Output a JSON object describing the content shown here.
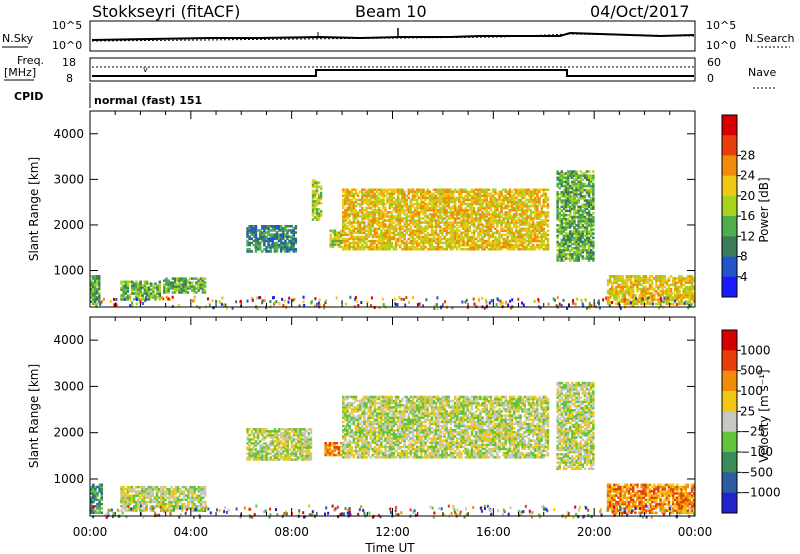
{
  "header": {
    "station": "Stokkseyri (fitACF)",
    "beam": "Beam 10",
    "date": "04/Oct/2017"
  },
  "status_panels": {
    "nsky_label": "N.Sky",
    "nsearch_label": "N.Search",
    "noise_ticks": [
      "10^5",
      "10^0"
    ],
    "freq_label_1": "Freq.",
    "freq_label_2": "[MHz]",
    "freq_ticks": [
      "18",
      "8"
    ],
    "nave_label": "Nave",
    "nave_ticks": [
      "60",
      "0"
    ],
    "cpid_label": "CPID",
    "cpid_value": "normal (fast) 151"
  },
  "chart_data": [
    {
      "type": "heatmap",
      "name": "power",
      "ylabel": "Slant Range [km]",
      "xlabel": "",
      "ylim": [
        200,
        4500
      ],
      "x_ticks": [
        "00:00",
        "04:00",
        "08:00",
        "12:00",
        "16:00",
        "20:00",
        "00:00"
      ],
      "y_ticks": [
        "1000",
        "2000",
        "3000",
        "4000"
      ],
      "colorbar": {
        "label": "Power [dB]",
        "ticks": [
          "4",
          "8",
          "12",
          "16",
          "20",
          "24",
          "28"
        ],
        "colors": [
          "#1a1aff",
          "#2255cc",
          "#3d7a5c",
          "#4cae4c",
          "#a8d21e",
          "#f0c814",
          "#f08c0a",
          "#e83c0a",
          "#d70000"
        ]
      },
      "regions": [
        {
          "t": [
            0.0,
            0.4
          ],
          "r": [
            250,
            900
          ],
          "level": 3
        },
        {
          "t": [
            1.2,
            2.8
          ],
          "r": [
            350,
            780
          ],
          "level": 3
        },
        {
          "t": [
            2.9,
            4.6
          ],
          "r": [
            500,
            850
          ],
          "level": 3
        },
        {
          "t": [
            6.2,
            8.2
          ],
          "r": [
            1400,
            2000
          ],
          "level": 2
        },
        {
          "t": [
            8.8,
            9.2
          ],
          "r": [
            2100,
            3000
          ],
          "level": 4
        },
        {
          "t": [
            9.5,
            10.0
          ],
          "r": [
            1500,
            1900
          ],
          "level": 4
        },
        {
          "t": [
            10.0,
            18.2
          ],
          "r": [
            1450,
            2800
          ],
          "level": 5
        },
        {
          "t": [
            18.5,
            20.0
          ],
          "r": [
            1200,
            3200
          ],
          "level": 3
        },
        {
          "t": [
            20.5,
            24.0
          ],
          "r": [
            250,
            900
          ],
          "level": 5
        }
      ]
    },
    {
      "type": "heatmap",
      "name": "velocity",
      "ylabel": "Slant Range [km]",
      "xlabel": "Time UT",
      "ylim": [
        200,
        4500
      ],
      "x_ticks": [
        "00:00",
        "04:00",
        "08:00",
        "12:00",
        "16:00",
        "20:00",
        "00:00"
      ],
      "y_ticks": [
        "1000",
        "2000",
        "3000",
        "4000"
      ],
      "colorbar": {
        "label": "Velocity [m s⁻¹]",
        "ticks": [
          "1000",
          "500",
          "100",
          "25",
          "−25",
          "−100",
          "−500",
          "−1000"
        ],
        "colors": [
          "#2222cc",
          "#2d5d9f",
          "#3c8c5a",
          "#62c43c",
          "#c8c8c0",
          "#f0c814",
          "#f08c0a",
          "#e83c0a",
          "#d70000"
        ]
      },
      "regions": [
        {
          "t": [
            0.0,
            0.5
          ],
          "r": [
            250,
            900
          ],
          "level": 2
        },
        {
          "t": [
            1.2,
            4.6
          ],
          "r": [
            300,
            850
          ],
          "level": 4
        },
        {
          "t": [
            6.2,
            8.8
          ],
          "r": [
            1400,
            2100
          ],
          "level": 4
        },
        {
          "t": [
            9.3,
            10.0
          ],
          "r": [
            1500,
            1800
          ],
          "level": 6
        },
        {
          "t": [
            10.0,
            18.2
          ],
          "r": [
            1450,
            2800
          ],
          "level": 4
        },
        {
          "t": [
            18.5,
            20.0
          ],
          "r": [
            1200,
            3100
          ],
          "level": 4
        },
        {
          "t": [
            20.5,
            24.0
          ],
          "r": [
            250,
            900
          ],
          "level": 6
        }
      ]
    }
  ]
}
